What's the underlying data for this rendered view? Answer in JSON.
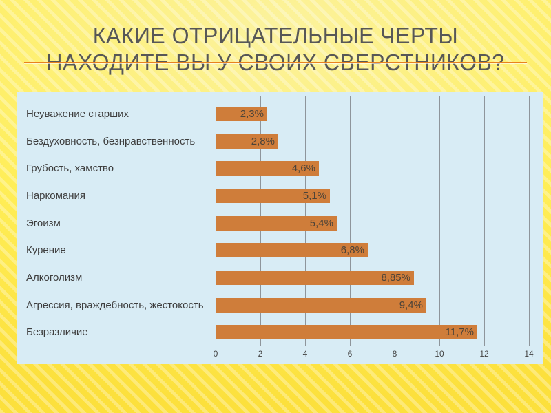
{
  "slide": {
    "title_line1": "КАКИЕ ОТРИЦАТЕЛЬНЫЕ ЧЕРТЫ",
    "title_line2": "НАХОДИТЕ ВЫ  У СВОИХ СВЕРСТНИКОВ?"
  },
  "colors": {
    "background_yellow": "#ffe94f",
    "background_stripe": "#fff7a8",
    "title_text": "#575757",
    "title_underline": "#e8821e",
    "chart_panel_bg": "#d8ecf5",
    "bar_fill": "#cf7d3a",
    "gridline": "#8e959b",
    "label_text": "#3e3e3e"
  },
  "chart_data": {
    "type": "bar",
    "orientation": "horizontal",
    "title": "",
    "xlabel": "",
    "ylabel": "",
    "categories": [
      "Неуважение старших",
      "Бездуховность, безнравственность",
      "Грубость, хамство",
      "Наркомания",
      "Эгоизм",
      "Курение",
      "Алкоголизм",
      "Агрессия, враждебность, жестокость",
      "Безразличие"
    ],
    "values": [
      2.3,
      2.8,
      4.6,
      5.1,
      5.4,
      6.8,
      8.85,
      9.4,
      11.7
    ],
    "value_labels": [
      "2,3%",
      "2,8%",
      "4,6%",
      "5,1%",
      "5,4%",
      "6,8%",
      "8,85%",
      "9,4%",
      "11,7%"
    ],
    "xlim": [
      0,
      14
    ],
    "x_ticks": [
      0,
      2,
      4,
      6,
      8,
      10,
      12,
      14
    ],
    "grid": true,
    "legend": "none",
    "bar_color": "#cf7d3a",
    "plot_bg": "#d8ecf5"
  }
}
